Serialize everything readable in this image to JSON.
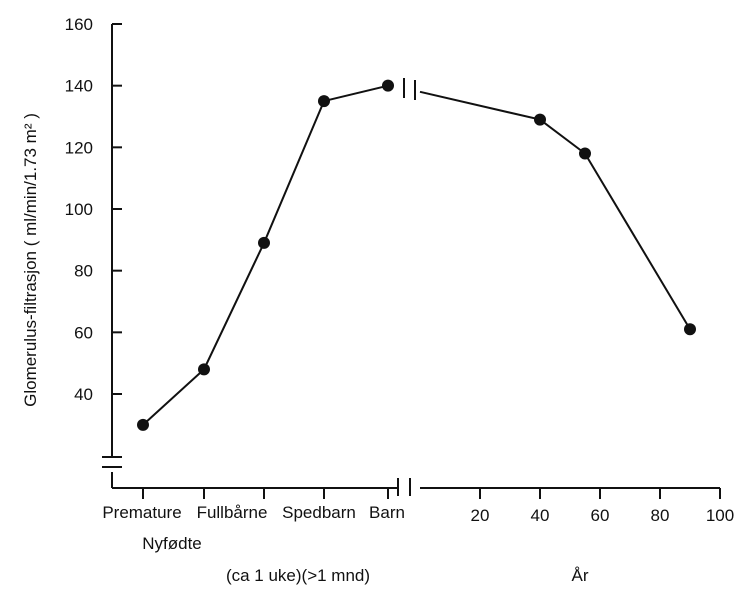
{
  "chart_data": {
    "type": "line",
    "ylabel": "Glomerulus-filtrasjon ( ml/min/1.73 m² )",
    "ylim": [
      20,
      160
    ],
    "yticks": [
      40,
      60,
      80,
      100,
      120,
      140,
      160
    ],
    "y_axis_break": true,
    "x_axis_break": true,
    "grid": false,
    "categories": [
      "Premature",
      "Fullbårne",
      "Spedbarn",
      "Barn"
    ],
    "category_group_label": "Nyfødte",
    "category_note": "(ca 1 uke)(>1 mnd)",
    "category_values": [
      30,
      48,
      89,
      135,
      140
    ],
    "age_axis_label": "År",
    "age_ticks": [
      20,
      40,
      60,
      80,
      100
    ],
    "age_x": [
      0,
      40,
      55,
      90
    ],
    "age_values": [
      138,
      129,
      118,
      61
    ]
  }
}
